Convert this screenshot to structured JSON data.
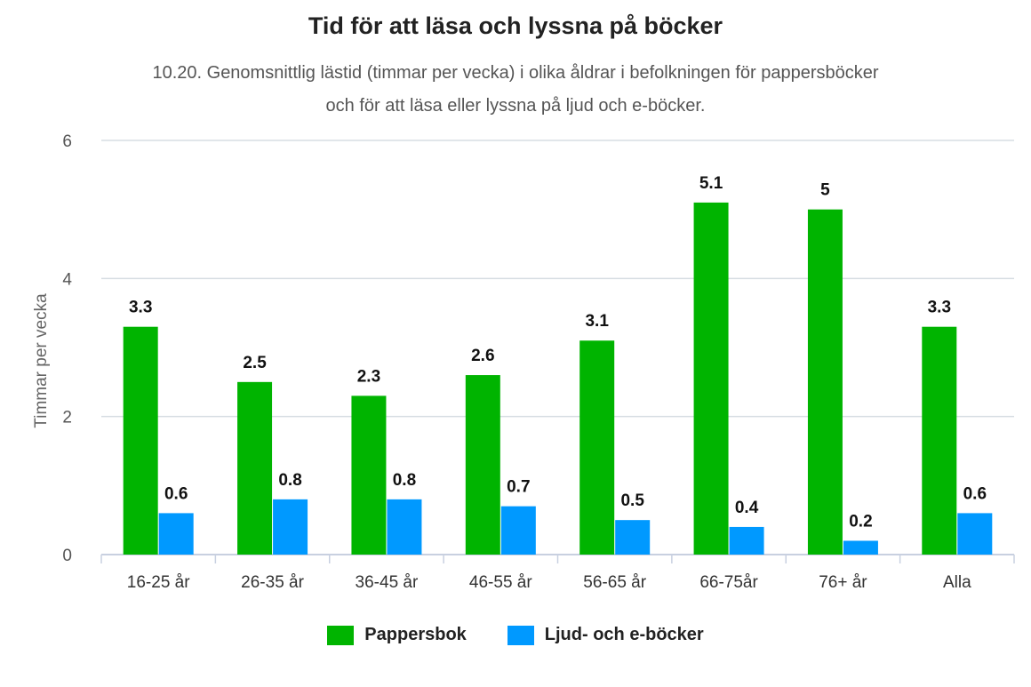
{
  "colors": {
    "pappersbok": "#00B400",
    "ljud_ebocker": "#0099FF",
    "grid": "#d7dde3",
    "axis": "#c8d0e0"
  },
  "chart_data": {
    "type": "bar",
    "title": "Tid för att läsa och lyssna på böcker",
    "subtitle_line1": "10.20. Genomsnittlig lästid (timmar per vecka) i olika åldrar i befolkningen för pappersböcker",
    "subtitle_line2": "och för att läsa eller lyssna på ljud och e-böcker.",
    "xlabel": "",
    "ylabel": "Timmar per vecka",
    "ylim": [
      0,
      6
    ],
    "yticks": [
      "0",
      "2",
      "4",
      "6"
    ],
    "grid": true,
    "legend_position": "bottom",
    "categories": [
      "16-25 år",
      "26-35 år",
      "36-45 år",
      "46-55 år",
      "56-65 år",
      "66-75år",
      "76+ år",
      "Alla"
    ],
    "series": [
      {
        "name": "Pappersbok",
        "values": [
          3.3,
          2.5,
          2.3,
          2.6,
          3.1,
          5.1,
          5,
          3.3
        ],
        "labels": [
          "3.3",
          "2.5",
          "2.3",
          "2.6",
          "3.1",
          "5.1",
          "5",
          "3.3"
        ]
      },
      {
        "name": "Ljud- och e-böcker",
        "values": [
          0.6,
          0.8,
          0.8,
          0.7,
          0.5,
          0.4,
          0.2,
          0.6
        ],
        "labels": [
          "0.6",
          "0.8",
          "0.8",
          "0.7",
          "0.5",
          "0.4",
          "0.2",
          "0.6"
        ]
      }
    ]
  }
}
